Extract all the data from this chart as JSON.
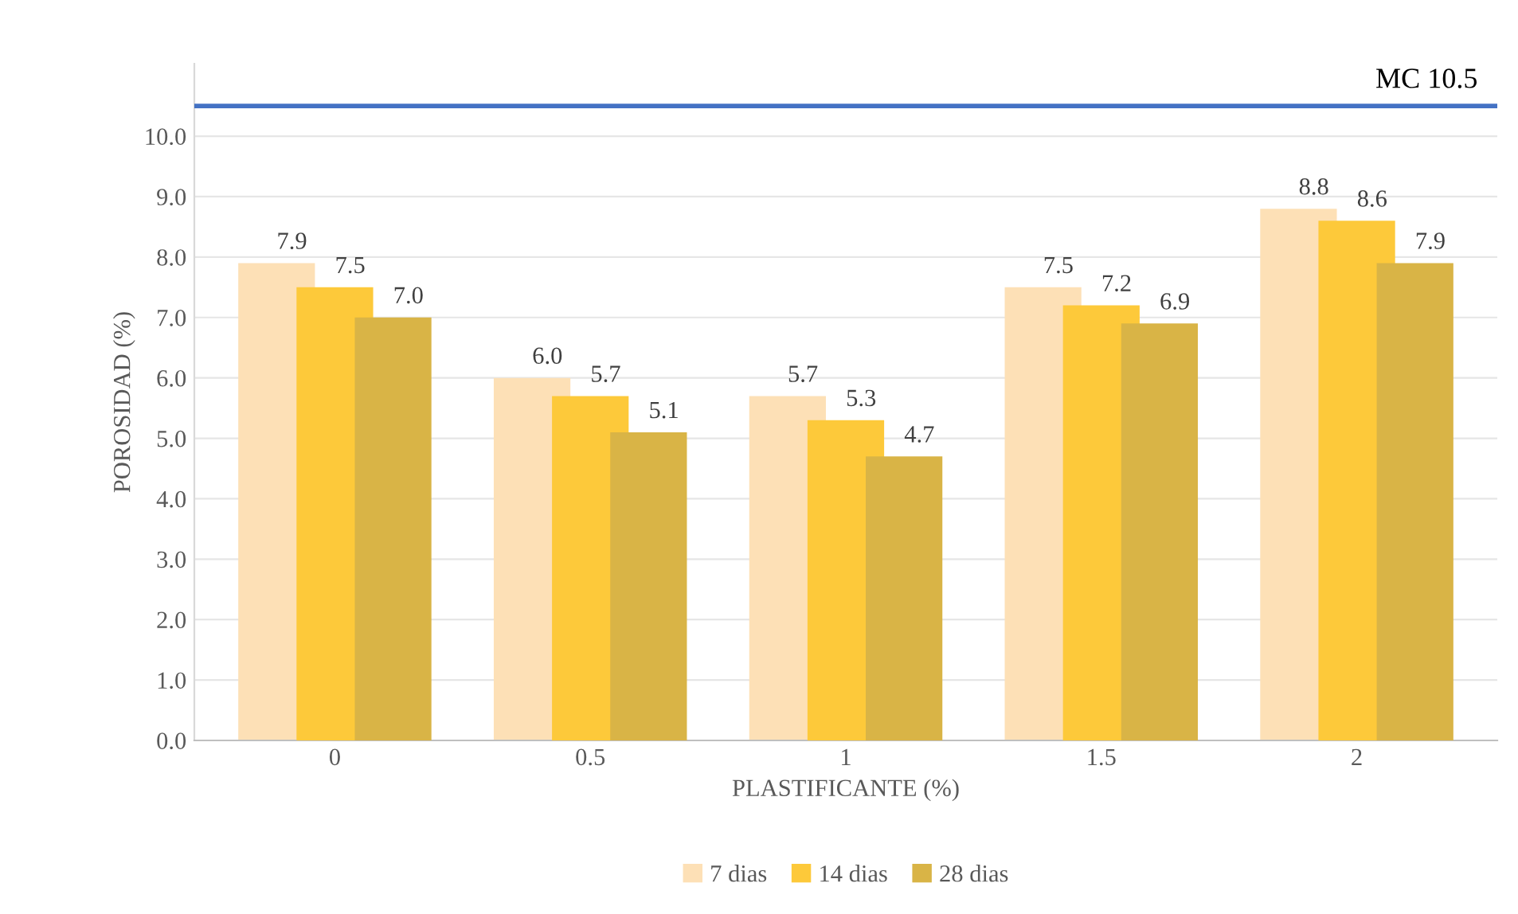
{
  "chart_data": {
    "type": "bar",
    "xlabel": "PLASTIFICANTE (%)",
    "ylabel": "POROSIDAD (%)",
    "categories": [
      "0",
      "0.5",
      "1",
      "1.5",
      "2"
    ],
    "series": [
      {
        "name": "7 dias",
        "color": "#fde0b6",
        "values": [
          7.9,
          6.0,
          5.7,
          7.5,
          8.8
        ],
        "value_labels": [
          "7.9",
          "6.0",
          "5.7",
          "7.5",
          "8.8"
        ]
      },
      {
        "name": "14 dias",
        "color": "#fdc93a",
        "values": [
          7.5,
          5.7,
          5.3,
          7.2,
          8.6
        ],
        "value_labels": [
          "7.5",
          "5.7",
          "5.3",
          "7.2",
          "8.6"
        ]
      },
      {
        "name": "28 dias",
        "color": "#d9b446",
        "values": [
          7.0,
          5.1,
          4.7,
          6.9,
          7.9
        ],
        "value_labels": [
          "7.0",
          "5.1",
          "4.7",
          "6.9",
          "7.9"
        ]
      }
    ],
    "ylim": [
      0,
      11.2
    ],
    "yticks": [
      {
        "value": 0,
        "label": "0.0"
      },
      {
        "value": 1,
        "label": "1.0"
      },
      {
        "value": 2,
        "label": "2.0"
      },
      {
        "value": 3,
        "label": "3.0"
      },
      {
        "value": 4,
        "label": "4.0"
      },
      {
        "value": 5,
        "label": "5.0"
      },
      {
        "value": 6,
        "label": "6.0"
      },
      {
        "value": 7,
        "label": "7.0"
      },
      {
        "value": 8,
        "label": "8.0"
      },
      {
        "value": 9,
        "label": "9.0"
      },
      {
        "value": 10,
        "label": "10.0"
      }
    ],
    "ref_lines": [
      {
        "axis": "y",
        "value": 10.5,
        "label": "MC 10.5",
        "color": "#4472c4"
      }
    ],
    "grid": "y",
    "legend": "bottom"
  }
}
